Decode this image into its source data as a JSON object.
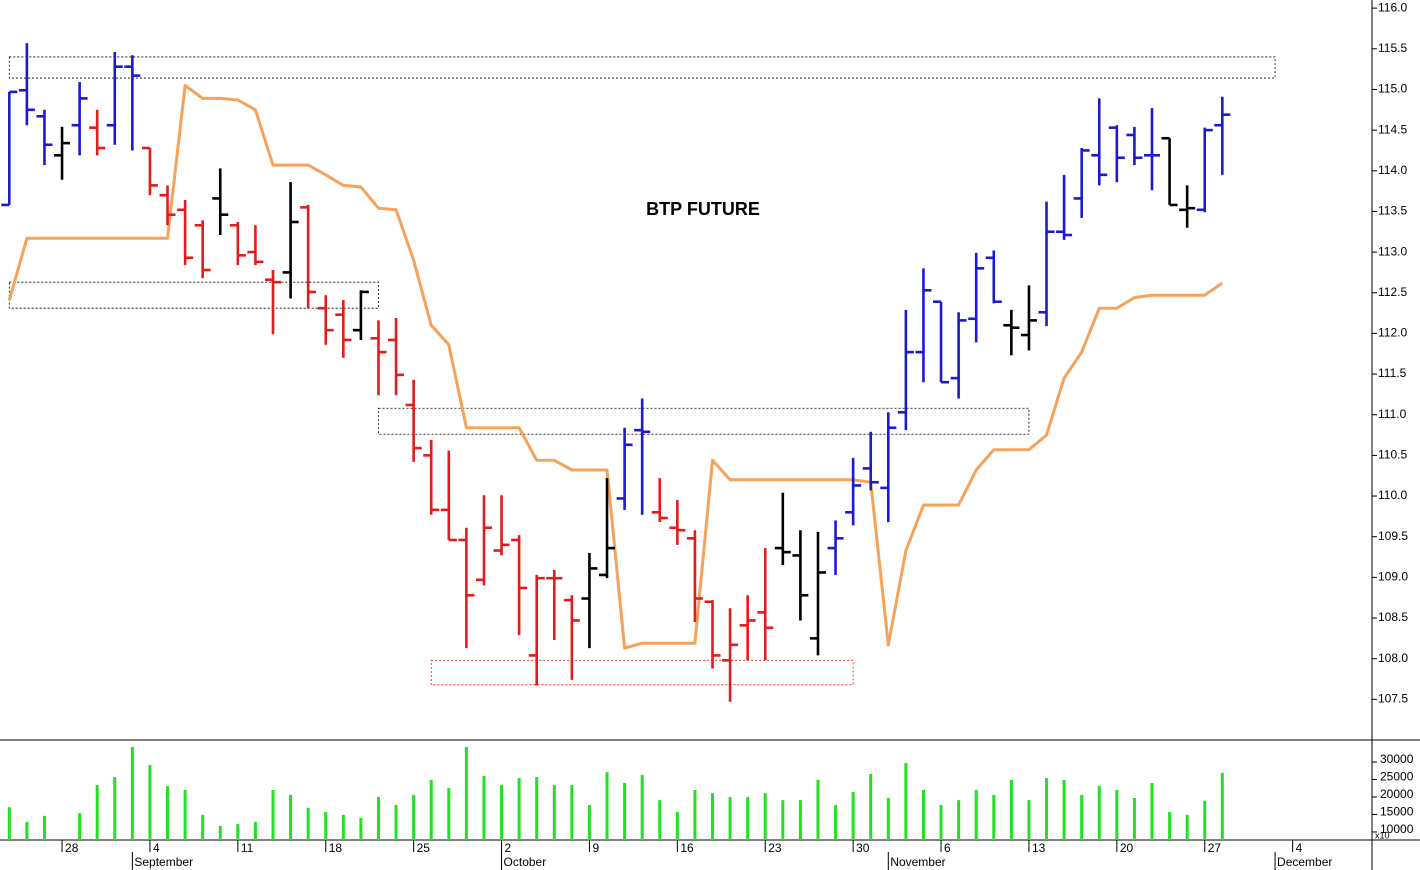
{
  "chart_data": {
    "type": "ohlc",
    "title": "BTP FUTURE",
    "categories": [
      null,
      null,
      null,
      "28",
      null,
      null,
      null,
      null,
      "4",
      null,
      null,
      null,
      null,
      "11",
      null,
      null,
      null,
      null,
      "18",
      null,
      null,
      null,
      null,
      "25",
      null,
      null,
      null,
      null,
      "2",
      null,
      null,
      null,
      null,
      "9",
      null,
      null,
      null,
      null,
      "16",
      null,
      null,
      null,
      null,
      "23",
      null,
      null,
      null,
      null,
      "30",
      null,
      null,
      null,
      null,
      "6",
      null,
      null,
      null,
      null,
      "13",
      null,
      null,
      null,
      null,
      "20",
      null,
      null,
      null,
      null,
      "27",
      null,
      null,
      null,
      null,
      "4",
      null
    ],
    "month_labels": [
      null,
      null,
      null,
      null,
      null,
      null,
      null,
      "September",
      null,
      null,
      null,
      null,
      null,
      null,
      null,
      null,
      null,
      null,
      null,
      null,
      null,
      null,
      null,
      null,
      null,
      null,
      null,
      null,
      "October",
      null,
      null,
      null,
      null,
      null,
      null,
      null,
      null,
      null,
      null,
      null,
      null,
      null,
      null,
      null,
      null,
      null,
      null,
      null,
      null,
      null,
      "November",
      null,
      null,
      null,
      null,
      null,
      null,
      null,
      null,
      null,
      null,
      null,
      null,
      null,
      null,
      null,
      null,
      null,
      null,
      null,
      null,
      null,
      "December",
      null,
      null
    ],
    "open": [
      113.58,
      114.99,
      114.67,
      114.19,
      114.56,
      114.53,
      114.56,
      115.28,
      114.28,
      113.7,
      113.52,
      113.33,
      113.66,
      113.33,
      113.0,
      112.66,
      112.75,
      113.55,
      112.31,
      112.23,
      112.04,
      111.94,
      111.92,
      111.12,
      110.5,
      109.83,
      109.46,
      108.97,
      109.33,
      109.46,
      108.04,
      108.99,
      108.72,
      108.74,
      109.03,
      109.97,
      110.81,
      109.8,
      109.61,
      109.48,
      108.7,
      107.98,
      108.41,
      108.57,
      109.36,
      109.27,
      108.25,
      109.36,
      109.8,
      110.34,
      110.1,
      111.03,
      111.77,
      112.39,
      111.45,
      112.18,
      112.93,
      112.1,
      111.98,
      112.26,
      113.25,
      113.66,
      114.19,
      114.53,
      114.44,
      114.19,
      114.4,
      113.52,
      113.52,
      114.56,
      null,
      null,
      null,
      null,
      null
    ],
    "high": [
      114.97,
      115.57,
      114.75,
      114.54,
      115.09,
      114.75,
      115.46,
      115.42,
      114.28,
      113.82,
      113.64,
      113.39,
      114.03,
      113.37,
      113.33,
      112.78,
      113.86,
      113.58,
      112.47,
      112.41,
      112.53,
      112.16,
      112.19,
      111.43,
      110.69,
      110.56,
      109.61,
      110.01,
      110.01,
      109.52,
      109.03,
      109.09,
      108.78,
      109.3,
      110.22,
      110.84,
      111.2,
      110.22,
      109.95,
      109.58,
      108.72,
      108.62,
      108.78,
      109.36,
      110.04,
      109.58,
      109.56,
      109.7,
      110.47,
      110.79,
      111.03,
      112.29,
      112.8,
      112.39,
      112.26,
      112.99,
      113.02,
      112.29,
      112.59,
      113.62,
      113.95,
      114.28,
      114.89,
      114.56,
      114.54,
      114.77,
      114.4,
      113.82,
      114.53,
      114.91,
      null,
      null,
      null,
      null,
      null
    ],
    "low": [
      113.58,
      114.56,
      114.07,
      113.89,
      114.19,
      114.19,
      114.32,
      114.25,
      113.7,
      113.33,
      112.84,
      112.68,
      113.21,
      112.84,
      112.84,
      111.99,
      112.43,
      112.31,
      111.86,
      111.7,
      111.92,
      111.24,
      111.24,
      110.42,
      109.77,
      109.46,
      108.13,
      108.9,
      109.27,
      108.29,
      107.67,
      108.23,
      107.74,
      108.13,
      108.99,
      109.83,
      109.77,
      109.68,
      109.4,
      108.45,
      107.88,
      107.47,
      107.98,
      107.98,
      109.15,
      108.47,
      108.04,
      109.03,
      109.64,
      110.07,
      109.68,
      110.81,
      111.4,
      111.4,
      111.2,
      111.89,
      112.37,
      111.73,
      111.79,
      112.09,
      113.15,
      113.42,
      113.82,
      113.86,
      114.07,
      113.76,
      113.58,
      113.3,
      113.49,
      113.95,
      null,
      null,
      null,
      null,
      null
    ],
    "close": [
      114.97,
      114.75,
      114.32,
      114.34,
      114.89,
      114.28,
      115.28,
      115.17,
      113.82,
      113.46,
      112.93,
      112.78,
      113.46,
      112.96,
      112.88,
      112.63,
      113.37,
      112.51,
      112.04,
      111.92,
      112.51,
      111.77,
      111.49,
      110.59,
      109.83,
      109.46,
      108.78,
      109.61,
      109.4,
      108.87,
      108.99,
      108.99,
      108.47,
      109.11,
      109.36,
      110.63,
      110.79,
      109.73,
      109.58,
      108.74,
      108.04,
      108.17,
      108.47,
      108.38,
      109.31,
      108.78,
      109.06,
      109.48,
      110.13,
      110.17,
      110.84,
      111.77,
      112.53,
      111.4,
      112.16,
      112.8,
      112.39,
      112.07,
      112.16,
      113.25,
      113.21,
      114.25,
      113.95,
      114.16,
      114.16,
      114.19,
      113.58,
      113.54,
      114.5,
      114.69,
      null,
      null,
      null,
      null,
      null
    ],
    "bar_colors": [
      "#1a1ad0",
      "#1a1ad0",
      "#1a1ad0",
      "#000000",
      "#1a1ad0",
      "#e31b1b",
      "#1a1ad0",
      "#1a1ad0",
      "#e31b1b",
      "#e31b1b",
      "#e31b1b",
      "#e31b1b",
      "#000000",
      "#e31b1b",
      "#e31b1b",
      "#e31b1b",
      "#000000",
      "#e31b1b",
      "#e31b1b",
      "#e31b1b",
      "#000000",
      "#e31b1b",
      "#e31b1b",
      "#e31b1b",
      "#e31b1b",
      "#e31b1b",
      "#e31b1b",
      "#e31b1b",
      "#e31b1b",
      "#e31b1b",
      "#e31b1b",
      "#e31b1b",
      "#e31b1b",
      "#000000",
      "#000000",
      "#1a1ad0",
      "#1a1ad0",
      "#e31b1b",
      "#e31b1b",
      "#e31b1b",
      "#e31b1b",
      "#e31b1b",
      "#e31b1b",
      "#e31b1b",
      "#000000",
      "#000000",
      "#000000",
      "#1a1ad0",
      "#1a1ad0",
      "#1a1ad0",
      "#1a1ad0",
      "#1a1ad0",
      "#1a1ad0",
      "#1a1ad0",
      "#1a1ad0",
      "#1a1ad0",
      "#1a1ad0",
      "#000000",
      "#000000",
      "#1a1ad0",
      "#1a1ad0",
      "#1a1ad0",
      "#1a1ad0",
      "#1a1ad0",
      "#1a1ad0",
      "#1a1ad0",
      "#000000",
      "#000000",
      "#1a1ad0",
      "#1a1ad0",
      null,
      null,
      null,
      null,
      null
    ],
    "line": {
      "color": "#f5a35c",
      "values": [
        112.41,
        113.17,
        113.17,
        113.17,
        113.17,
        113.17,
        113.17,
        113.17,
        113.17,
        113.17,
        115.05,
        114.89,
        114.89,
        114.87,
        114.75,
        114.07,
        114.07,
        114.07,
        113.95,
        113.82,
        113.8,
        113.54,
        113.52,
        112.9,
        112.1,
        111.86,
        110.84,
        110.84,
        110.84,
        110.84,
        110.44,
        110.44,
        110.32,
        110.32,
        110.32,
        108.13,
        108.19,
        108.19,
        108.19,
        108.19,
        110.44,
        110.2,
        110.2,
        110.2,
        110.2,
        110.2,
        110.2,
        110.2,
        110.2,
        110.17,
        108.17,
        109.33,
        109.89,
        109.89,
        109.89,
        110.32,
        110.57,
        110.57,
        110.57,
        110.75,
        111.45,
        111.77,
        112.31,
        112.31,
        112.44,
        112.47,
        112.47,
        112.47,
        112.47,
        112.62,
        null,
        null,
        null,
        null,
        null
      ]
    },
    "zones": [
      {
        "from": 0,
        "to": 72,
        "low": 115.14,
        "high": 115.4,
        "color": "#000000"
      },
      {
        "from": 0,
        "to": 21,
        "low": 112.31,
        "high": 112.63,
        "color": "#000000"
      },
      {
        "from": 21,
        "to": 58,
        "low": 110.76,
        "high": 111.08,
        "color": "#000000"
      },
      {
        "from": 24,
        "to": 48,
        "low": 107.68,
        "high": 107.98,
        "color": "#e31b1b"
      }
    ],
    "ylim": [
      107.0,
      116.1
    ],
    "yticks": [
      107.5,
      {
        "value": 108,
        "label": "108.0"
      },
      108.5,
      {
        "value": 109,
        "label": "109.0"
      },
      109.5,
      {
        "value": 110,
        "label": "110.0"
      },
      110.5,
      {
        "value": 111,
        "label": "111.0"
      },
      111.5,
      {
        "value": 112,
        "label": "112.0"
      },
      112.5,
      {
        "value": 113,
        "label": "113.0"
      },
      113.5,
      {
        "value": 114,
        "label": "114.0"
      },
      114.5,
      {
        "value": 115,
        "label": "115.0"
      },
      115.5,
      {
        "value": 116,
        "label": "116.0"
      }
    ],
    "volume": {
      "color": "#22e022",
      "values": [
        17100,
        12900,
        14600,
        null,
        15400,
        23400,
        25700,
        34300,
        29100,
        23100,
        22000,
        14900,
        11700,
        12300,
        12900,
        22000,
        20600,
        16900,
        15700,
        14900,
        14000,
        20000,
        17700,
        20600,
        24900,
        22600,
        34300,
        26000,
        23400,
        25400,
        25700,
        23400,
        23400,
        17700,
        27100,
        24000,
        26300,
        19100,
        15700,
        22000,
        21100,
        20000,
        20000,
        21100,
        19100,
        19100,
        24900,
        17700,
        21400,
        26600,
        19700,
        29700,
        22000,
        17700,
        19100,
        22000,
        20600,
        24900,
        19100,
        25400,
        24900,
        20600,
        23100,
        22000,
        19700,
        24000,
        15700,
        14900,
        18900,
        26900,
        null,
        null,
        null,
        null,
        null
      ],
      "ylim": [
        7700,
        36300
      ],
      "yticks": [
        10000,
        15000,
        20000,
        25000,
        30000
      ],
      "unit_label": "x10"
    }
  }
}
